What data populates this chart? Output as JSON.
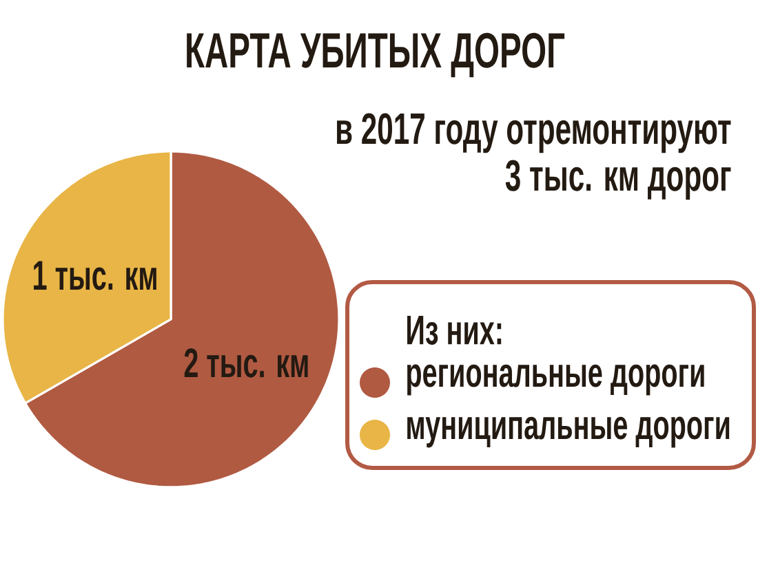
{
  "chart_data": {
    "type": "pie",
    "title": "КАРТА УБИТЫХ ДОРОГ",
    "subtitle": "в 2017 году отремонтируют 3 тыс. км дорог",
    "legend_title": "Из них:",
    "categories": [
      "региональные дороги",
      "муниципальные дороги"
    ],
    "values": [
      2,
      1
    ],
    "value_labels": [
      "2 тыс. км",
      "1 тыс. км"
    ],
    "colors": [
      "#b05a42",
      "#e8b546"
    ],
    "legend": "right"
  }
}
